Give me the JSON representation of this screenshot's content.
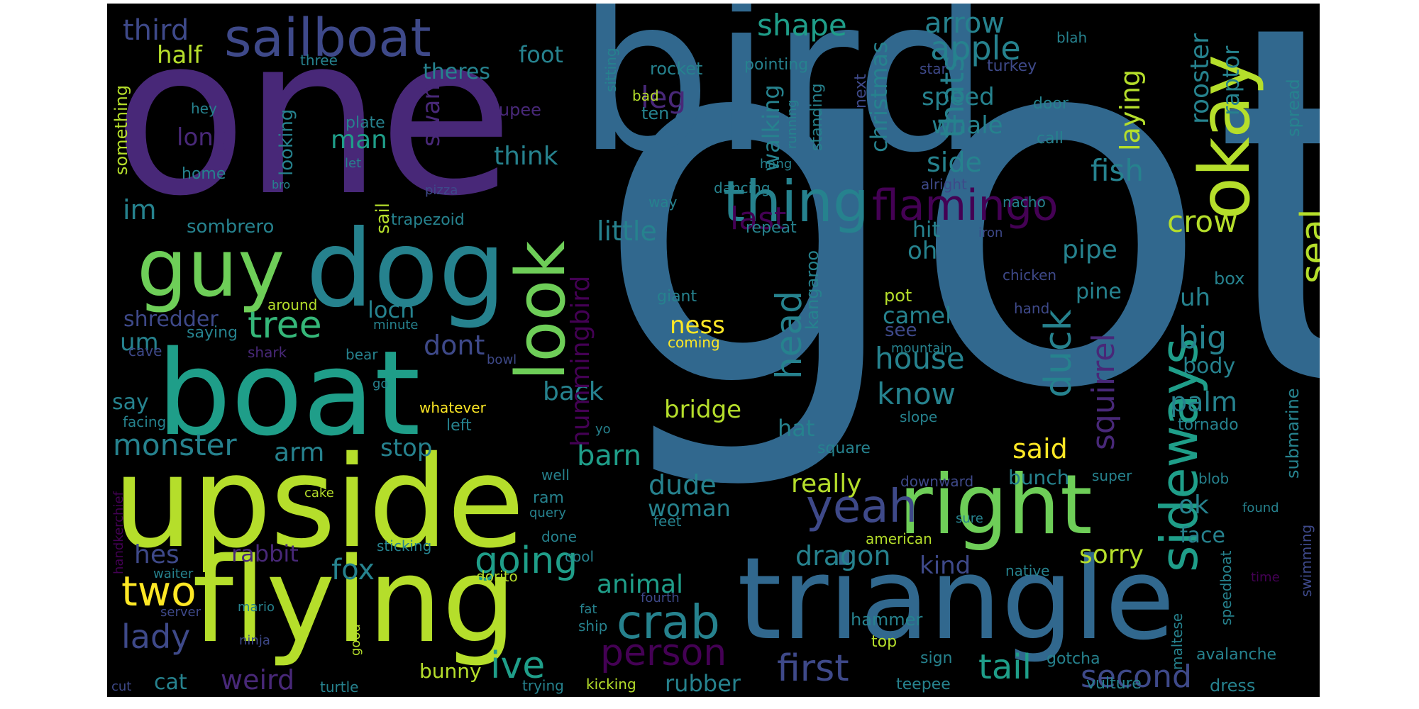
{
  "palette": {
    "background": "#000000",
    "colors": [
      "#440154",
      "#482878",
      "#3e4989",
      "#31688e",
      "#26828e",
      "#1f9e89",
      "#35b779",
      "#6ece58",
      "#b5de2b",
      "#fde725"
    ]
  },
  "words": [
    {
      "text": "got",
      "color": "#31688e"
    },
    {
      "text": "one",
      "color": "#482878"
    },
    {
      "text": "bird",
      "color": "#31688e"
    },
    {
      "text": "upside",
      "color": "#b5de2b"
    },
    {
      "text": "triangle",
      "color": "#31688e"
    },
    {
      "text": "flying",
      "color": "#b5de2b"
    },
    {
      "text": "boat",
      "color": "#1f9e89"
    },
    {
      "text": "dog",
      "color": "#26828e"
    },
    {
      "text": "guy",
      "color": "#6ece58"
    },
    {
      "text": "right",
      "color": "#6ece58"
    },
    {
      "text": "sailboat",
      "color": "#3e4989"
    },
    {
      "text": "okay",
      "color": "#b5de2b"
    },
    {
      "text": "look",
      "color": "#6ece58"
    },
    {
      "text": "thing",
      "color": "#26828e"
    },
    {
      "text": "sideways",
      "color": "#1f9e89"
    },
    {
      "text": "flamingo",
      "color": "#440154"
    },
    {
      "text": "yeah",
      "color": "#3e4989"
    },
    {
      "text": "crab",
      "color": "#26828e"
    },
    {
      "text": "person",
      "color": "#440154"
    },
    {
      "text": "going",
      "color": "#1f9e89"
    },
    {
      "text": "ive",
      "color": "#1f9e89"
    },
    {
      "text": "first",
      "color": "#3e4989"
    },
    {
      "text": "tail",
      "color": "#1f9e89"
    },
    {
      "text": "second",
      "color": "#3e4989"
    },
    {
      "text": "two",
      "color": "#fde725"
    },
    {
      "text": "tree",
      "color": "#35b779"
    },
    {
      "text": "monster",
      "color": "#26828e"
    },
    {
      "text": "lady",
      "color": "#3e4989"
    },
    {
      "text": "apple",
      "color": "#26828e"
    },
    {
      "text": "house",
      "color": "#26828e"
    },
    {
      "text": "know",
      "color": "#26828e"
    },
    {
      "text": "duck",
      "color": "#26828e"
    },
    {
      "text": "head",
      "color": "#26828e"
    },
    {
      "text": "seal",
      "color": "#b5de2b"
    },
    {
      "text": "crow",
      "color": "#b5de2b"
    },
    {
      "text": "fish",
      "color": "#26828e"
    },
    {
      "text": "dragon",
      "color": "#26828e"
    },
    {
      "text": "squirrel",
      "color": "#482878"
    },
    {
      "text": "big",
      "color": "#26828e"
    },
    {
      "text": "palm",
      "color": "#26828e"
    },
    {
      "text": "barn",
      "color": "#1f9e89"
    },
    {
      "text": "back",
      "color": "#26828e"
    },
    {
      "text": "little",
      "color": "#26828e"
    },
    {
      "text": "last",
      "color": "#440154"
    },
    {
      "text": "thats",
      "color": "#26828e"
    },
    {
      "text": "oh",
      "color": "#26828e"
    },
    {
      "text": "leg",
      "color": "#482878"
    },
    {
      "text": "shape",
      "color": "#1f9e89"
    },
    {
      "text": "arrow",
      "color": "#26828e"
    },
    {
      "text": "third",
      "color": "#3e4989"
    },
    {
      "text": "half",
      "color": "#b5de2b"
    },
    {
      "text": "foot",
      "color": "#26828e"
    },
    {
      "text": "theres",
      "color": "#26828e"
    },
    {
      "text": "speed",
      "color": "#26828e"
    },
    {
      "text": "whale",
      "color": "#26828e"
    },
    {
      "text": "side",
      "color": "#26828e"
    },
    {
      "text": "rooster",
      "color": "#26828e"
    },
    {
      "text": "raptor",
      "color": "#26828e"
    },
    {
      "text": "laying",
      "color": "#b5de2b"
    },
    {
      "text": "christmas",
      "color": "#26828e"
    },
    {
      "text": "walking",
      "color": "#26828e"
    },
    {
      "text": "think",
      "color": "#26828e"
    },
    {
      "text": "man",
      "color": "#1f9e89"
    },
    {
      "text": "swan",
      "color": "#482878"
    },
    {
      "text": "long",
      "color": "#482878"
    },
    {
      "text": "looking",
      "color": "#26828e"
    },
    {
      "text": "im",
      "color": "#26828e"
    },
    {
      "text": "sombrero",
      "color": "#26828e"
    },
    {
      "text": "sail",
      "color": "#b5de2b"
    },
    {
      "text": "trapezoid",
      "color": "#26828e"
    },
    {
      "text": "hit",
      "color": "#26828e"
    },
    {
      "text": "pipe",
      "color": "#26828e"
    },
    {
      "text": "pine",
      "color": "#26828e"
    },
    {
      "text": "uh",
      "color": "#26828e"
    },
    {
      "text": "camel",
      "color": "#26828e"
    },
    {
      "text": "see",
      "color": "#3e4989"
    },
    {
      "text": "ness",
      "color": "#fde725"
    },
    {
      "text": "loch",
      "color": "#26828e"
    },
    {
      "text": "shredder",
      "color": "#3e4989"
    },
    {
      "text": "um",
      "color": "#26828e"
    },
    {
      "text": "dont",
      "color": "#3e4989"
    },
    {
      "text": "hummingbird",
      "color": "#440154"
    },
    {
      "text": "kangaroo",
      "color": "#26828e"
    },
    {
      "text": "bridge",
      "color": "#b5de2b"
    },
    {
      "text": "hat",
      "color": "#26828e"
    },
    {
      "text": "said",
      "color": "#fde725"
    },
    {
      "text": "stop",
      "color": "#26828e"
    },
    {
      "text": "arm",
      "color": "#26828e"
    },
    {
      "text": "say",
      "color": "#26828e"
    },
    {
      "text": "hes",
      "color": "#3e4989"
    },
    {
      "text": "rabbit",
      "color": "#482878"
    },
    {
      "text": "fox",
      "color": "#26828e"
    },
    {
      "text": "dude",
      "color": "#26828e"
    },
    {
      "text": "woman",
      "color": "#26828e"
    },
    {
      "text": "really",
      "color": "#b5de2b"
    },
    {
      "text": "animal",
      "color": "#1f9e89"
    },
    {
      "text": "kind",
      "color": "#3e4989"
    },
    {
      "text": "sorry",
      "color": "#b5de2b"
    },
    {
      "text": "ok",
      "color": "#26828e"
    },
    {
      "text": "bunch",
      "color": "#26828e"
    },
    {
      "text": "face",
      "color": "#26828e"
    },
    {
      "text": "cat",
      "color": "#26828e"
    },
    {
      "text": "weird",
      "color": "#482878"
    },
    {
      "text": "rubber",
      "color": "#26828e"
    },
    {
      "text": "bunny",
      "color": "#b5de2b"
    },
    {
      "text": "submarine",
      "color": "#26828e"
    },
    {
      "text": "body",
      "color": "#26828e"
    },
    {
      "text": "tornado",
      "color": "#26828e"
    },
    {
      "text": "swimming",
      "color": "#3e4989"
    },
    {
      "text": "speedboat",
      "color": "#26828e"
    },
    {
      "text": "avalanche",
      "color": "#26828e"
    },
    {
      "text": "vulture",
      "color": "#26828e"
    },
    {
      "text": "dress",
      "color": "#26828e"
    },
    {
      "text": "hammer",
      "color": "#26828e"
    },
    {
      "text": "top",
      "color": "#b5de2b"
    },
    {
      "text": "sign",
      "color": "#26828e"
    },
    {
      "text": "teepee",
      "color": "#26828e"
    },
    {
      "text": "gotcha",
      "color": "#26828e"
    },
    {
      "text": "maltese",
      "color": "#26828e"
    },
    {
      "text": "rocket",
      "color": "#26828e"
    },
    {
      "text": "pointing",
      "color": "#26828e"
    },
    {
      "text": "star",
      "color": "#3e4989"
    },
    {
      "text": "turkey",
      "color": "#3e4989"
    },
    {
      "text": "blah",
      "color": "#26828e"
    },
    {
      "text": "spread",
      "color": "#26828e"
    },
    {
      "text": "door",
      "color": "#26828e"
    },
    {
      "text": "call",
      "color": "#26828e"
    },
    {
      "text": "alright",
      "color": "#3e4989"
    },
    {
      "text": "nacho",
      "color": "#26828e"
    },
    {
      "text": "iron",
      "color": "#3e4989"
    },
    {
      "text": "chicken",
      "color": "#3e4989"
    },
    {
      "text": "box",
      "color": "#26828e"
    },
    {
      "text": "hand",
      "color": "#3e4989"
    },
    {
      "text": "standing",
      "color": "#26828e"
    },
    {
      "text": "running",
      "color": "#26828e"
    },
    {
      "text": "next",
      "color": "#3e4989"
    },
    {
      "text": "hang",
      "color": "#26828e"
    },
    {
      "text": "dancing",
      "color": "#26828e"
    },
    {
      "text": "way",
      "color": "#26828e"
    },
    {
      "text": "repeat",
      "color": "#26828e"
    },
    {
      "text": "ten",
      "color": "#26828e"
    },
    {
      "text": "bad",
      "color": "#b5de2b"
    },
    {
      "text": "sitting",
      "color": "#26828e"
    },
    {
      "text": "rupee",
      "color": "#482878"
    },
    {
      "text": "pizza",
      "color": "#3e4989"
    },
    {
      "text": "giant",
      "color": "#26828e"
    },
    {
      "text": "pot",
      "color": "#b5de2b"
    },
    {
      "text": "coming",
      "color": "#fde725"
    },
    {
      "text": "mountain",
      "color": "#26828e"
    },
    {
      "text": "slope",
      "color": "#26828e"
    },
    {
      "text": "square",
      "color": "#26828e"
    },
    {
      "text": "downward",
      "color": "#3e4989"
    },
    {
      "text": "super",
      "color": "#26828e"
    },
    {
      "text": "blob",
      "color": "#26828e"
    },
    {
      "text": "found",
      "color": "#26828e"
    },
    {
      "text": "sure",
      "color": "#26828e"
    },
    {
      "text": "american",
      "color": "#b5de2b"
    },
    {
      "text": "native",
      "color": "#26828e"
    },
    {
      "text": "time",
      "color": "#440154"
    },
    {
      "text": "something",
      "color": "#b5de2b"
    },
    {
      "text": "three",
      "color": "#26828e"
    },
    {
      "text": "hey",
      "color": "#26828e"
    },
    {
      "text": "home",
      "color": "#26828e"
    },
    {
      "text": "bro",
      "color": "#26828e"
    },
    {
      "text": "plate",
      "color": "#26828e"
    },
    {
      "text": "let",
      "color": "#26828e"
    },
    {
      "text": "around",
      "color": "#b5de2b"
    },
    {
      "text": "minute",
      "color": "#26828e"
    },
    {
      "text": "saying",
      "color": "#26828e"
    },
    {
      "text": "cave",
      "color": "#3e4989"
    },
    {
      "text": "shark",
      "color": "#482878"
    },
    {
      "text": "bear",
      "color": "#26828e"
    },
    {
      "text": "bowl",
      "color": "#3e4989"
    },
    {
      "text": "go",
      "color": "#26828e"
    },
    {
      "text": "whatever",
      "color": "#fde725"
    },
    {
      "text": "facing",
      "color": "#26828e"
    },
    {
      "text": "left",
      "color": "#26828e"
    },
    {
      "text": "yo",
      "color": "#26828e"
    },
    {
      "text": "well",
      "color": "#26828e"
    },
    {
      "text": "ram",
      "color": "#26828e"
    },
    {
      "text": "query",
      "color": "#26828e"
    },
    {
      "text": "done",
      "color": "#26828e"
    },
    {
      "text": "feet",
      "color": "#26828e"
    },
    {
      "text": "cake",
      "color": "#b5de2b"
    },
    {
      "text": "handkerchief",
      "color": "#440154"
    },
    {
      "text": "sticking",
      "color": "#26828e"
    },
    {
      "text": "cool",
      "color": "#26828e"
    },
    {
      "text": "waiter",
      "color": "#26828e"
    },
    {
      "text": "dorito",
      "color": "#b5de2b"
    },
    {
      "text": "fourth",
      "color": "#3e4989"
    },
    {
      "text": "fat",
      "color": "#26828e"
    },
    {
      "text": "ship",
      "color": "#26828e"
    },
    {
      "text": "server",
      "color": "#3e4989"
    },
    {
      "text": "mario",
      "color": "#26828e"
    },
    {
      "text": "good",
      "color": "#b5de2b"
    },
    {
      "text": "ninja",
      "color": "#3e4989"
    },
    {
      "text": "cut",
      "color": "#3e4989"
    },
    {
      "text": "turtle",
      "color": "#26828e"
    },
    {
      "text": "trying",
      "color": "#26828e"
    },
    {
      "text": "kicking",
      "color": "#b5de2b"
    }
  ]
}
